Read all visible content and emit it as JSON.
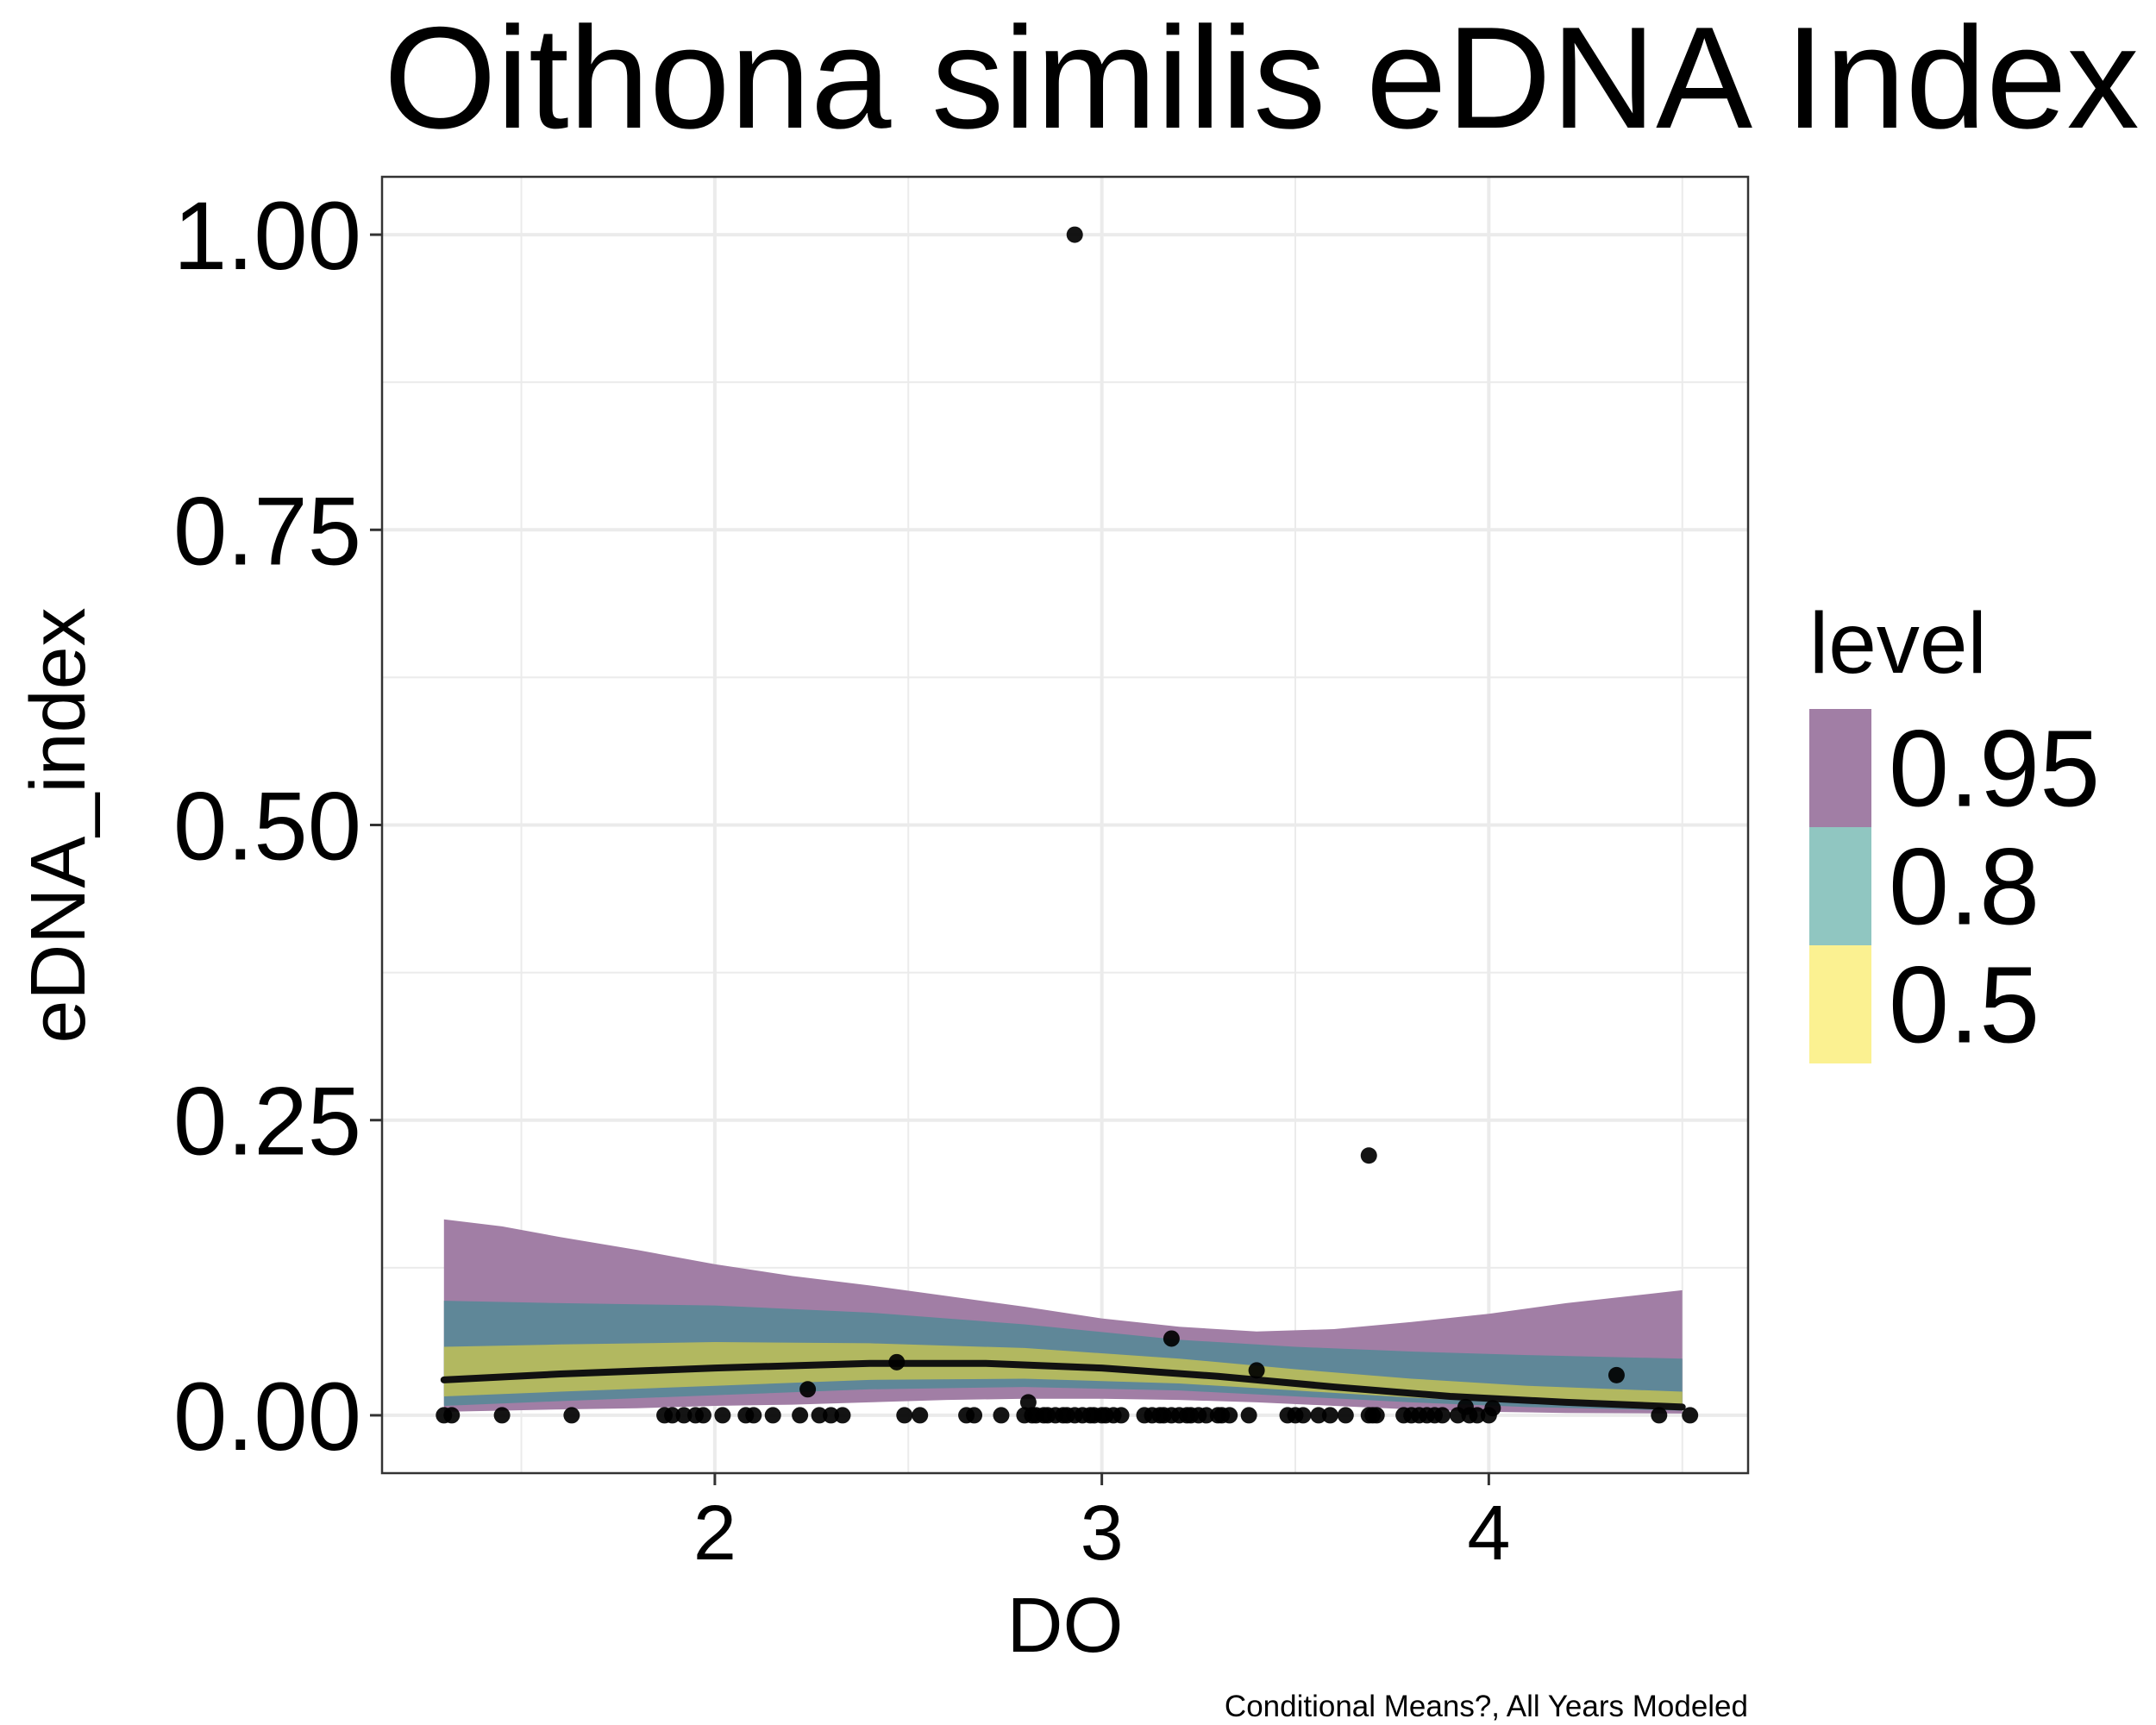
{
  "chart_data": {
    "type": "line",
    "title": "Oithona similis eDNA Index",
    "xlabel": "DO",
    "ylabel": "eDNA_index",
    "caption": "Conditional Means?, All Years Modeled",
    "xlim": [
      1.14,
      4.67
    ],
    "ylim": [
      -0.049,
      1.049
    ],
    "x_ticks": [
      2,
      3,
      4
    ],
    "x_tick_labels": [
      "2",
      "3",
      "4"
    ],
    "y_ticks": [
      0,
      0.25,
      0.5,
      0.75,
      1.0
    ],
    "y_tick_labels": [
      "0.00",
      "0.25",
      "0.50",
      "0.75",
      "1.00"
    ],
    "grid": true,
    "legend": {
      "title": "level",
      "placement": "right",
      "entries": [
        {
          "label": "0.95",
          "color": "#a17ea5"
        },
        {
          "label": "0.8",
          "color": "#90c6c1"
        },
        {
          "label": "0.5",
          "color": "#fbf191"
        }
      ]
    },
    "colors": {
      "band_95": "#a17ea5",
      "band_80": "#5f8798",
      "band_50": "#b2b860",
      "line": "#111111",
      "points": "#000000",
      "grid": "#ebebeb",
      "panel_border": "#333333"
    },
    "series": [
      {
        "name": "0.95",
        "band": true,
        "x": [
          1.3,
          1.45,
          1.6,
          1.8,
          2.0,
          2.2,
          2.4,
          2.6,
          2.8,
          3.0,
          3.2,
          3.4,
          3.6,
          3.8,
          4.0,
          4.2,
          4.5
        ],
        "lower": [
          0.003,
          0.004,
          0.005,
          0.006,
          0.008,
          0.009,
          0.011,
          0.013,
          0.014,
          0.014,
          0.013,
          0.011,
          0.008,
          0.005,
          0.003,
          0.002,
          0.0015
        ],
        "upper": [
          0.166,
          0.16,
          0.151,
          0.14,
          0.128,
          0.118,
          0.11,
          0.101,
          0.092,
          0.082,
          0.075,
          0.071,
          0.073,
          0.079,
          0.086,
          0.095,
          0.106
        ]
      },
      {
        "name": "0.8",
        "band": true,
        "x": [
          1.3,
          1.6,
          2.0,
          2.4,
          2.8,
          3.2,
          3.5,
          3.8,
          4.1,
          4.5
        ],
        "lower": [
          0.008,
          0.012,
          0.017,
          0.022,
          0.024,
          0.021,
          0.016,
          0.011,
          0.007,
          0.004
        ],
        "upper": [
          0.097,
          0.095,
          0.093,
          0.087,
          0.077,
          0.064,
          0.058,
          0.054,
          0.051,
          0.048
        ]
      },
      {
        "name": "0.5",
        "band": true,
        "x": [
          1.3,
          1.6,
          2.0,
          2.4,
          2.8,
          3.2,
          3.5,
          3.8,
          4.1,
          4.5
        ],
        "lower": [
          0.016,
          0.02,
          0.025,
          0.03,
          0.031,
          0.027,
          0.021,
          0.015,
          0.01,
          0.006
        ],
        "upper": [
          0.058,
          0.06,
          0.062,
          0.061,
          0.057,
          0.048,
          0.039,
          0.031,
          0.025,
          0.02
        ]
      },
      {
        "name": "median",
        "x": [
          1.3,
          1.6,
          2.0,
          2.4,
          2.7,
          3.0,
          3.3,
          3.6,
          3.9,
          4.2,
          4.5
        ],
        "y": [
          0.03,
          0.035,
          0.04,
          0.044,
          0.044,
          0.04,
          0.033,
          0.024,
          0.016,
          0.011,
          0.007
        ]
      }
    ],
    "points": {
      "x": [
        1.3,
        1.32,
        1.45,
        1.63,
        1.87,
        1.89,
        1.92,
        1.95,
        1.97,
        2.02,
        2.08,
        2.1,
        2.15,
        2.22,
        2.27,
        2.3,
        2.33,
        2.49,
        2.53,
        2.65,
        2.67,
        2.74,
        2.8,
        2.82,
        2.83,
        2.85,
        2.86,
        2.88,
        2.9,
        2.91,
        2.93,
        2.95,
        2.97,
        2.98,
        3.0,
        3.01,
        3.03,
        3.05,
        3.11,
        3.13,
        3.15,
        3.16,
        3.18,
        3.2,
        3.22,
        3.23,
        3.25,
        3.27,
        3.3,
        3.31,
        3.33,
        3.38,
        3.48,
        3.5,
        3.52,
        3.56,
        3.59,
        3.63,
        3.69,
        3.7,
        3.71,
        3.78,
        3.8,
        3.82,
        3.84,
        3.86,
        3.88,
        3.92,
        3.95,
        3.97,
        4.0,
        4.44,
        4.52,
        2.93,
        3.69,
        3.18,
        4.33,
        2.24,
        3.4,
        2.47,
        2.81,
        3.94,
        4.01
      ],
      "y": [
        0,
        0,
        0,
        0,
        0,
        0,
        0,
        0,
        0,
        0,
        0,
        0,
        0,
        0,
        0,
        0,
        0,
        0,
        0,
        0,
        0,
        0,
        0,
        0,
        0,
        0,
        0,
        0,
        0,
        0,
        0,
        0,
        0,
        0,
        0,
        0,
        0,
        0,
        0,
        0,
        0,
        0,
        0,
        0,
        0,
        0,
        0,
        0,
        0,
        0,
        0,
        0,
        0,
        0,
        0,
        0,
        0,
        0,
        0,
        0,
        0,
        0,
        0,
        0,
        0,
        0,
        0,
        0,
        0,
        0,
        0,
        0,
        0,
        1.0,
        0.22,
        0.065,
        0.034,
        0.022,
        0.038,
        0.045,
        0.011,
        0.007,
        0.006
      ]
    }
  }
}
